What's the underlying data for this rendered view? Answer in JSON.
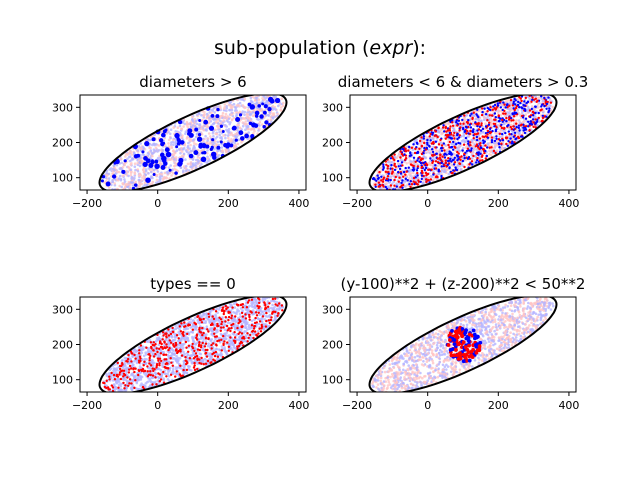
{
  "figure": {
    "suptitle_prefix": "sub-population (",
    "suptitle_italic": "expr",
    "suptitle_suffix": "):"
  },
  "colors": {
    "selected_blue": "#0000ff",
    "selected_red": "#ff0000",
    "background_light_red": "#ffc4c4",
    "background_light_blue": "#b4b4ff",
    "outline": "#000000"
  },
  "chart_data": [
    {
      "type": "scatter",
      "title": "diameters > 6",
      "xlim": [
        -220,
        420
      ],
      "ylim": [
        65,
        335
      ],
      "xticks": [
        -200,
        0,
        200,
        400
      ],
      "yticks": [
        100,
        200,
        300
      ],
      "ellipse": {
        "center": [
          100,
          200
        ],
        "semi_axes": [
          290,
          75
        ],
        "angle_deg": 25
      },
      "background_colors": [
        "#ffc4c4",
        "#b4b4ff"
      ],
      "selection": "diameters > 6",
      "selected_colors": [
        "#0000ff"
      ],
      "selected_fraction": 0.12
    },
    {
      "type": "scatter",
      "title": "diameters < 6 & diameters > 0.3",
      "xlim": [
        -220,
        420
      ],
      "ylim": [
        65,
        335
      ],
      "xticks": [
        -200,
        0,
        200,
        400
      ],
      "yticks": [
        100,
        200,
        300
      ],
      "ellipse": {
        "center": [
          100,
          200
        ],
        "semi_axes": [
          290,
          75
        ],
        "angle_deg": 25
      },
      "background_colors": [
        "#ffc4c4",
        "#b4b4ff"
      ],
      "selection": "diameters < 6 & diameters > 0.3",
      "selected_colors": [
        "#ff0000",
        "#0000ff"
      ],
      "selected_fraction": 0.85
    },
    {
      "type": "scatter",
      "title": "types == 0",
      "xlim": [
        -220,
        420
      ],
      "ylim": [
        65,
        335
      ],
      "xticks": [
        -200,
        0,
        200,
        400
      ],
      "yticks": [
        100,
        200,
        300
      ],
      "ellipse": {
        "center": [
          100,
          200
        ],
        "semi_axes": [
          290,
          75
        ],
        "angle_deg": 25
      },
      "background_colors": [
        "#b4b4ff"
      ],
      "selection": "types == 0",
      "selected_colors": [
        "#ff0000"
      ],
      "selected_fraction": 0.5
    },
    {
      "type": "scatter",
      "title": "(y-100)**2 + (z-200)**2 < 50**2",
      "xlim": [
        -220,
        420
      ],
      "ylim": [
        65,
        335
      ],
      "xticks": [
        -200,
        0,
        200,
        400
      ],
      "yticks": [
        100,
        200,
        300
      ],
      "ellipse": {
        "center": [
          100,
          200
        ],
        "semi_axes": [
          290,
          75
        ],
        "angle_deg": 25
      },
      "background_colors": [
        "#ffc4c4",
        "#b4b4ff"
      ],
      "selection": "(y-100)**2 + (z-200)**2 < 50**2",
      "circle": {
        "center": [
          100,
          200
        ],
        "radius": 50
      },
      "selected_colors": [
        "#0000ff",
        "#ff0000"
      ]
    }
  ]
}
